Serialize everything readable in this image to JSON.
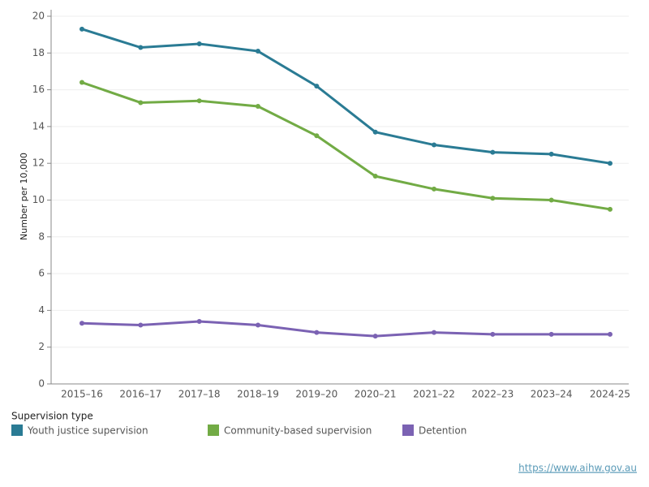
{
  "chart_data": {
    "type": "line",
    "y_label": "Number per 10,000",
    "categories": [
      "2015–16",
      "2016–17",
      "2017–18",
      "2018–19",
      "2019–20",
      "2020–21",
      "2021–22",
      "2022–23",
      "2023–24",
      "2024-25"
    ],
    "series": [
      {
        "name": "Youth justice supervision",
        "color": "#2a7b94",
        "values": [
          19.3,
          18.3,
          18.5,
          18.1,
          16.2,
          13.7,
          13.0,
          12.6,
          12.5,
          12.0
        ]
      },
      {
        "name": "Community-based supervision",
        "color": "#72ab45",
        "values": [
          16.4,
          15.3,
          15.4,
          15.1,
          13.5,
          11.3,
          10.6,
          10.1,
          10.0,
          9.5
        ]
      },
      {
        "name": "Detention",
        "color": "#7b62b3",
        "values": [
          3.3,
          3.2,
          3.4,
          3.2,
          2.8,
          2.6,
          2.8,
          2.7,
          2.7,
          2.7
        ]
      }
    ],
    "ylim": [
      0,
      20
    ],
    "yticks": [
      0,
      2,
      4,
      6,
      8,
      10,
      12,
      14,
      16,
      18,
      20
    ],
    "grid": true,
    "legend_title": "Supervision type",
    "source_url": "https://www.aihw.gov.au"
  }
}
